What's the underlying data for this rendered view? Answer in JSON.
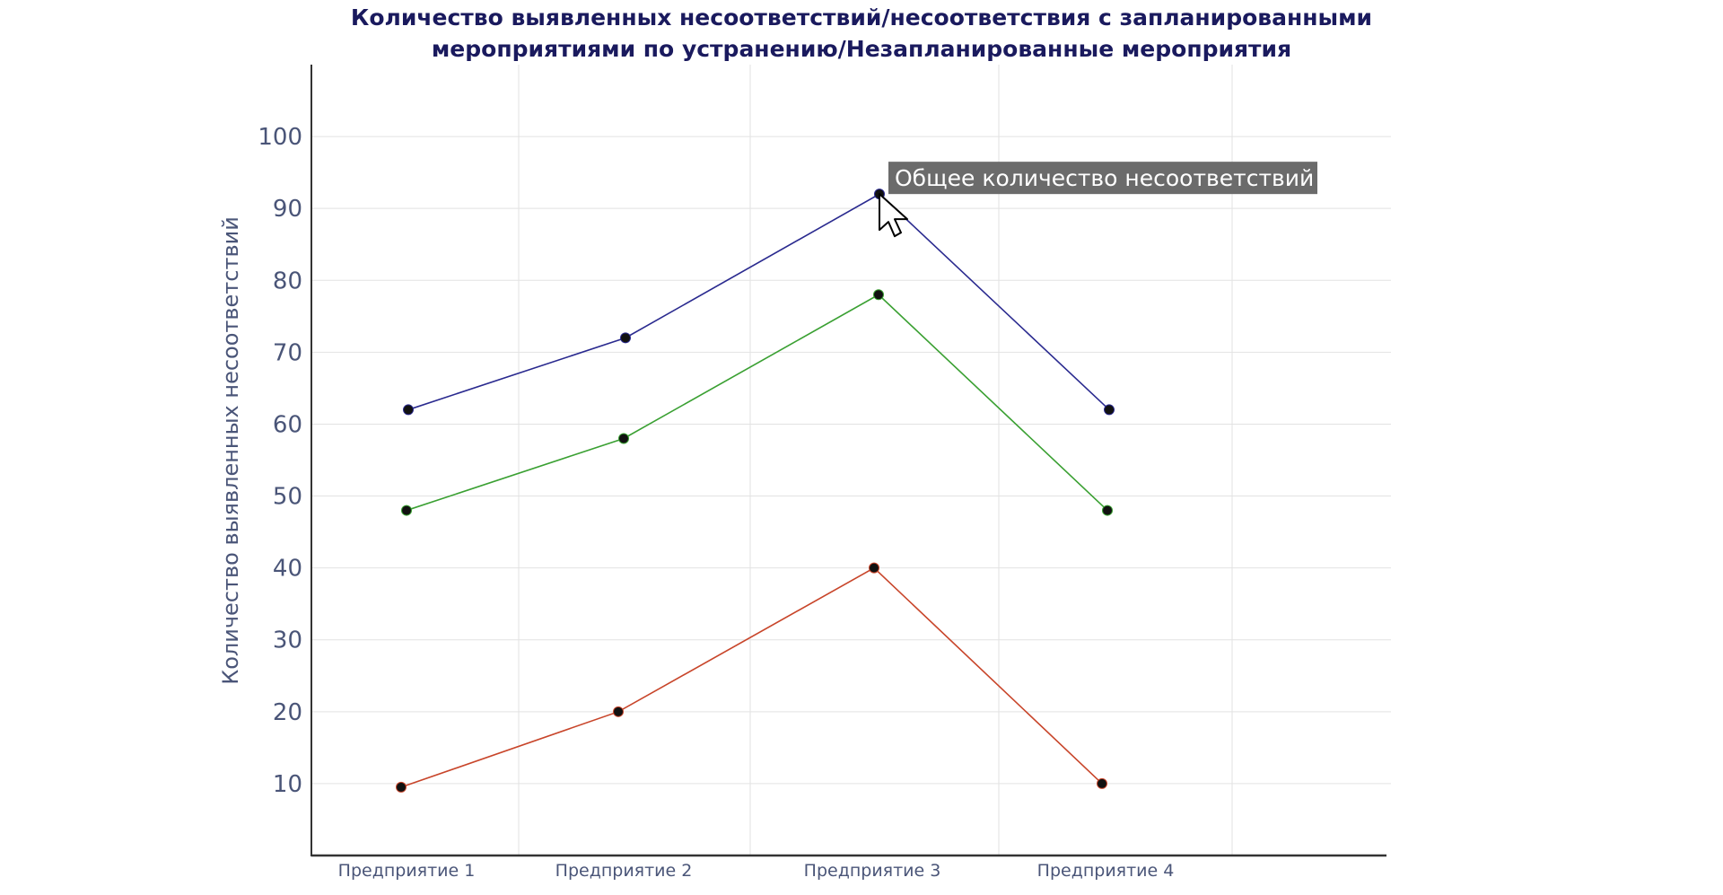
{
  "chart_data": {
    "type": "line",
    "title_lines": [
      "Количество выявленных несоответствий/несоответствия с запланированными",
      "мероприятиями по устранению/Незапланированные мероприятия"
    ],
    "xlabel": "",
    "ylabel": "Количество выявленных несоответствий",
    "categories": [
      "Предприятие 1",
      "Предприятие 2",
      "Предприятие 3",
      "Предприятие 4"
    ],
    "ylim": [
      0,
      110
    ],
    "yticks": [
      10,
      20,
      30,
      40,
      50,
      60,
      70,
      80,
      90,
      100
    ],
    "grid": true,
    "series": [
      {
        "color": "#2a2a8f",
        "values": [
          62,
          72,
          92,
          62
        ]
      },
      {
        "color": "#3aa032",
        "values": [
          48,
          58,
          78,
          48
        ]
      },
      {
        "color": "#c8452a",
        "values": [
          9.5,
          20,
          40,
          10
        ]
      }
    ],
    "marker_color": "#111111",
    "tooltip": {
      "text": "Общее количество несоответствий",
      "series_index": 0,
      "point_index": 2
    }
  }
}
